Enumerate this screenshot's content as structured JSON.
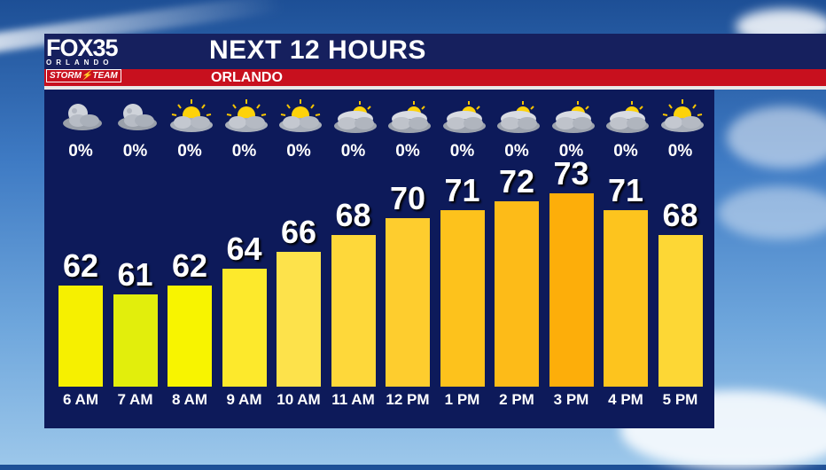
{
  "header": {
    "title": "NEXT 12 HOURS",
    "location": "ORLANDO"
  },
  "logo": {
    "brand": "FOX35",
    "city": "ORLANDO",
    "team": "STORM⚡TEAM"
  },
  "chart_data": {
    "type": "bar",
    "categories": [
      "6 AM",
      "7 AM",
      "8 AM",
      "9 AM",
      "10 AM",
      "11 AM",
      "12 PM",
      "1 PM",
      "2 PM",
      "3 PM",
      "4 PM",
      "5 PM"
    ],
    "values": [
      62,
      61,
      62,
      64,
      66,
      68,
      70,
      71,
      72,
      73,
      71,
      68
    ],
    "rain_chance": [
      "0%",
      "0%",
      "0%",
      "0%",
      "0%",
      "0%",
      "0%",
      "0%",
      "0%",
      "0%",
      "0%",
      "0%"
    ],
    "icons": [
      "moon-cloud-icon",
      "moon-cloud-icon",
      "sun-cloud-icon",
      "sun-cloud-icon",
      "sun-cloud-icon",
      "cloudy-icon",
      "cloudy-icon",
      "cloudy-icon",
      "cloudy-icon",
      "cloudy-icon",
      "cloudy-icon",
      "sun-cloud-icon"
    ],
    "bar_colors": [
      "#f6f000",
      "#e2ee0c",
      "#f8f400",
      "#fde92c",
      "#fde24b",
      "#fed83a",
      "#fecd2e",
      "#fdc21c",
      "#fdbb18",
      "#fdae0a",
      "#fdc41e",
      "#fdd735"
    ]
  }
}
